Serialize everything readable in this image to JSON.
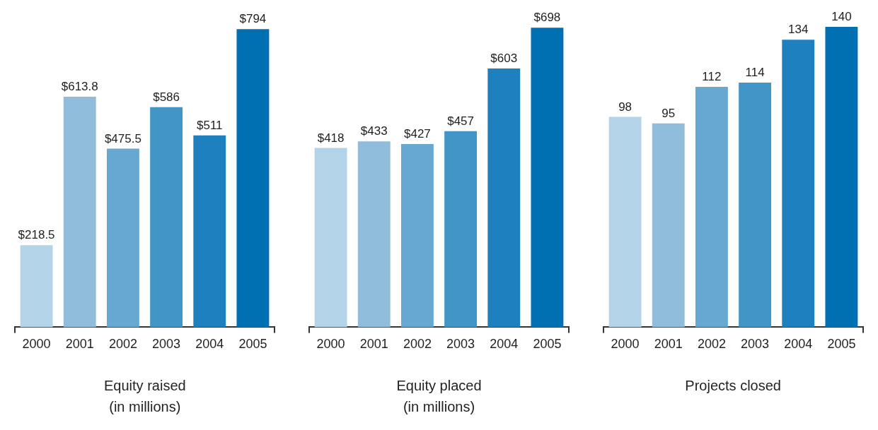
{
  "chart_data": [
    {
      "type": "bar",
      "title": "Equity raised",
      "subtitle": "(in millions)",
      "categories": [
        "2000",
        "2001",
        "2002",
        "2003",
        "2004",
        "2005"
      ],
      "values": [
        218.5,
        613.8,
        475.5,
        586,
        511,
        794
      ],
      "value_labels": [
        "$218.5",
        "$613.8",
        "$475.5",
        "$586",
        "$511",
        "$794"
      ],
      "colors": [
        "#b3d3e8",
        "#8fbddb",
        "#66a8d2",
        "#4295c7",
        "#1f80bf",
        "#0070b3"
      ],
      "grid": false,
      "legend": false
    },
    {
      "type": "bar",
      "title": "Equity placed",
      "subtitle": "(in millions)",
      "categories": [
        "2000",
        "2001",
        "2002",
        "2003",
        "2004",
        "2005"
      ],
      "values": [
        418,
        433,
        427,
        457,
        603,
        698
      ],
      "value_labels": [
        "$418",
        "$433",
        "$427",
        "$457",
        "$603",
        "$698"
      ],
      "colors": [
        "#b3d3e8",
        "#8fbddb",
        "#66a8d2",
        "#4295c7",
        "#1f80bf",
        "#0070b3"
      ],
      "grid": false,
      "legend": false
    },
    {
      "type": "bar",
      "title": "Projects closed",
      "categories": [
        "2000",
        "2001",
        "2002",
        "2003",
        "2004",
        "2005"
      ],
      "values": [
        98,
        95,
        112,
        114,
        134,
        140
      ],
      "data_labels": true,
      "colors": [
        "#b3d3e8",
        "#8fbddb",
        "#66a8d2",
        "#4295c7",
        "#1f80bf",
        "#0070b3"
      ],
      "grid": false,
      "legend": false
    }
  ]
}
